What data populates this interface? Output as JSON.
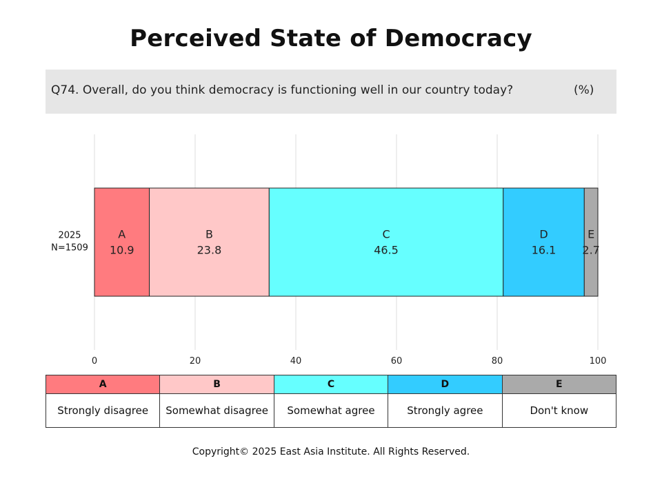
{
  "title": "Perceived State of Democracy",
  "question": {
    "text": "Q74. Overall, do you think democracy is functioning well in our country today?",
    "unit": "(%)"
  },
  "chart_data": {
    "type": "bar",
    "orientation": "horizontal-stacked",
    "categories": [
      "2025\nN=1509"
    ],
    "category_lines": [
      [
        "2025",
        "N=1509"
      ]
    ],
    "series": [
      {
        "name": "A",
        "values": [
          10.9
        ],
        "color": "#ff7b7f"
      },
      {
        "name": "B",
        "values": [
          23.8
        ],
        "color": "#ffc8c8"
      },
      {
        "name": "C",
        "values": [
          46.5
        ],
        "color": "#66ffff"
      },
      {
        "name": "D",
        "values": [
          16.1
        ],
        "color": "#33ccff"
      },
      {
        "name": "E",
        "values": [
          2.7
        ],
        "color": "#aaaaaa"
      }
    ],
    "xlim": [
      0,
      100
    ],
    "xticks": [
      0,
      20,
      40,
      60,
      80,
      100
    ],
    "grid": true
  },
  "legend": [
    {
      "key": "A",
      "label": "Strongly disagree",
      "color": "#ff7b7f"
    },
    {
      "key": "B",
      "label": "Somewhat disagree",
      "color": "#ffc8c8"
    },
    {
      "key": "C",
      "label": "Somewhat agree",
      "color": "#66ffff"
    },
    {
      "key": "D",
      "label": "Strongly agree",
      "color": "#33ccff"
    },
    {
      "key": "E",
      "label": "Don't know",
      "color": "#aaaaaa"
    }
  ],
  "copyright": "Copyright© 2025 East Asia Institute. All Rights Reserved."
}
